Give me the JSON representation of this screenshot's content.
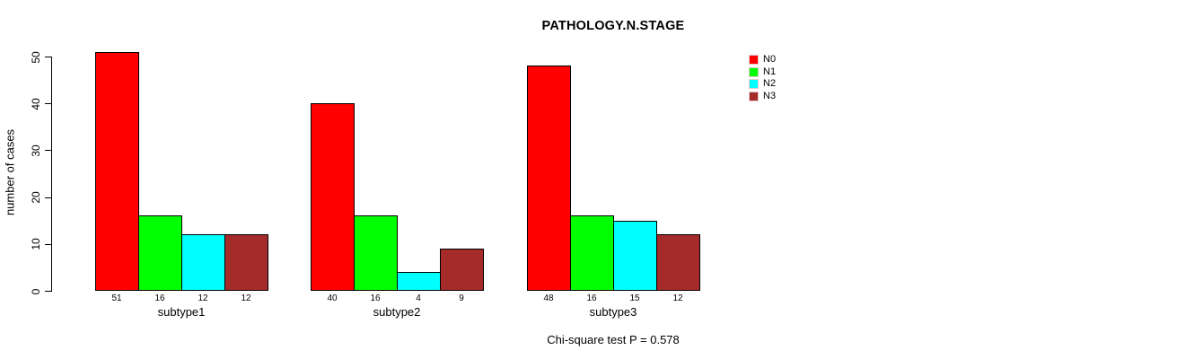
{
  "page": {
    "background": "#ffffff"
  },
  "chart_data": {
    "type": "bar",
    "title": "PATHOLOGY.N.STAGE",
    "xlabel": "",
    "ylabel": "number of cases",
    "categories": [
      "subtype1",
      "subtype2",
      "subtype3"
    ],
    "series": [
      {
        "name": "N0",
        "color": "#ff0000",
        "values": [
          51,
          40,
          48
        ]
      },
      {
        "name": "N1",
        "color": "#00ff00",
        "values": [
          16,
          16,
          16
        ]
      },
      {
        "name": "N2",
        "color": "#00ffff",
        "values": [
          12,
          4,
          15
        ]
      },
      {
        "name": "N3",
        "color": "#a52a2a",
        "values": [
          12,
          9,
          12
        ]
      }
    ],
    "ylim": [
      0,
      50
    ],
    "yticks": [
      0,
      10,
      20,
      30,
      40,
      50
    ],
    "grid": false,
    "legend_position": "top-right",
    "bar_value_labels": true,
    "annotation": "Chi-square test P = 0.578"
  }
}
